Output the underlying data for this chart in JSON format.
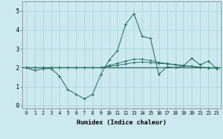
{
  "xlabel": "Humidex (Indice chaleur)",
  "ylabel": "",
  "background_color": "#cce9f0",
  "grid_color": "#aad4dc",
  "line_color": "#2a7060",
  "xlim": [
    -0.5,
    23.5
  ],
  "ylim": [
    -0.15,
    5.5
  ],
  "xticks": [
    0,
    1,
    2,
    3,
    4,
    5,
    6,
    7,
    8,
    9,
    10,
    11,
    12,
    13,
    14,
    15,
    16,
    17,
    18,
    19,
    20,
    21,
    22,
    23
  ],
  "yticks": [
    0,
    1,
    2,
    3,
    4,
    5
  ],
  "x": [
    0,
    1,
    2,
    3,
    4,
    5,
    6,
    7,
    8,
    9,
    10,
    11,
    12,
    13,
    14,
    15,
    16,
    17,
    18,
    19,
    20,
    21,
    22,
    23
  ],
  "line1": [
    2.0,
    1.85,
    1.95,
    1.95,
    1.55,
    0.85,
    0.6,
    0.35,
    0.6,
    1.65,
    2.4,
    2.9,
    4.3,
    4.85,
    3.65,
    3.55,
    1.65,
    2.05,
    2.0,
    2.1,
    2.5,
    2.15,
    2.35,
    1.95
  ],
  "line2": [
    2.0,
    2.0,
    2.0,
    2.0,
    2.0,
    2.0,
    2.0,
    2.0,
    2.0,
    2.0,
    2.07,
    2.13,
    2.2,
    2.27,
    2.3,
    2.27,
    2.23,
    2.2,
    2.15,
    2.1,
    2.07,
    2.03,
    2.0,
    2.0
  ],
  "line3": [
    2.0,
    2.0,
    2.0,
    2.0,
    2.0,
    2.0,
    2.0,
    2.0,
    2.0,
    2.0,
    2.12,
    2.23,
    2.35,
    2.45,
    2.45,
    2.38,
    2.28,
    2.22,
    2.17,
    2.12,
    2.07,
    2.02,
    1.99,
    1.97
  ],
  "hline_y": 2.0,
  "marker": "+"
}
